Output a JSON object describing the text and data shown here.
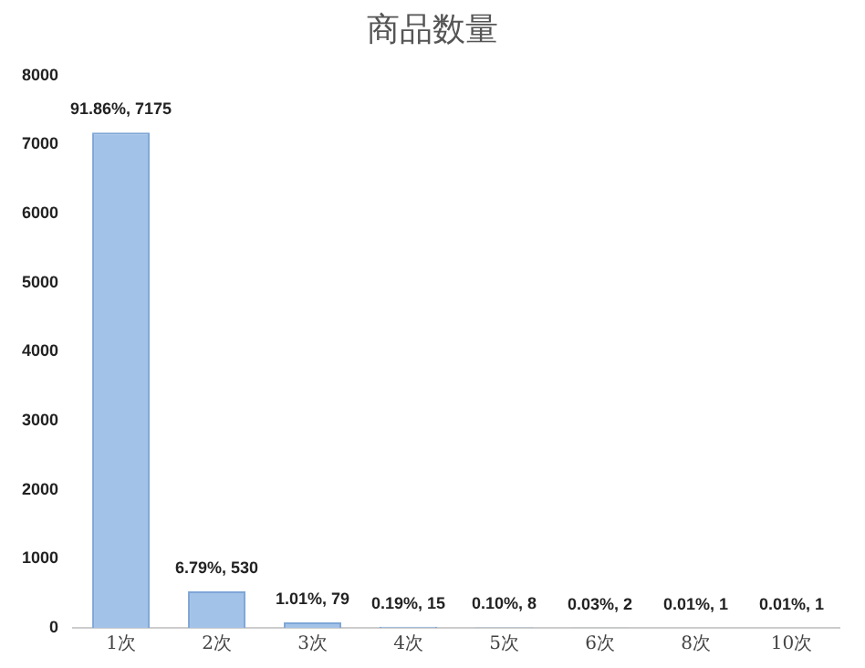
{
  "chart_data": {
    "type": "bar",
    "title": "商品数量",
    "categories": [
      "1次",
      "2次",
      "3次",
      "4次",
      "5次",
      "6次",
      "8次",
      "10次"
    ],
    "values": [
      7175,
      530,
      79,
      15,
      8,
      2,
      1,
      1
    ],
    "value_labels": [
      "91.86%, 7175",
      "6.79%, 530",
      "1.01%, 79",
      "0.19%, 15",
      "0.10%, 8",
      "0.03%, 2",
      "0.01%, 1",
      "0.01%, 1"
    ],
    "color": "#a3c2e8",
    "ylim": [
      0,
      8000
    ],
    "yticks": [
      0,
      1000,
      2000,
      3000,
      4000,
      5000,
      6000,
      7000,
      8000
    ],
    "grid": false,
    "legend": false
  }
}
